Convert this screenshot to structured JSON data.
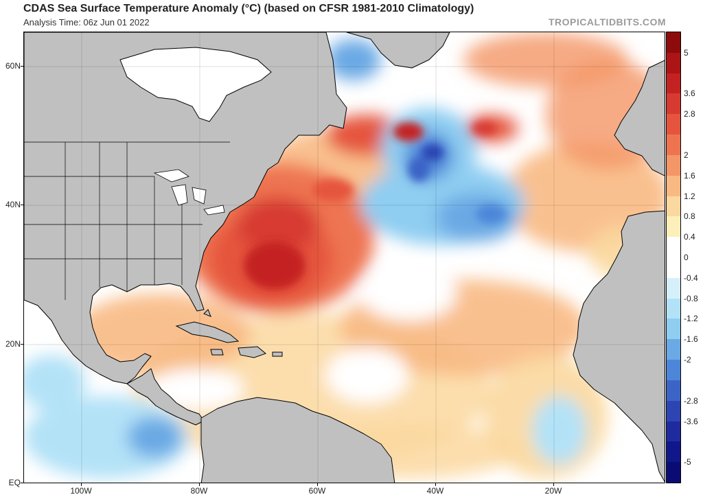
{
  "header": {
    "title": "CDAS Sea Surface Temperature Anomaly (°C) (based on CFSR 1981-2010 Climatology)",
    "subtitle": "Analysis Time: 06z Jun 01 2022",
    "brand": "TROPICALTIDBITS.COM"
  },
  "map": {
    "lat_labels": [
      "60N",
      "40N",
      "20N",
      "EQ"
    ],
    "lon_labels": [
      "100W",
      "80W",
      "60W",
      "40W",
      "20W"
    ],
    "land_color": "#c0c0c0",
    "coast_color": "#000000"
  },
  "colorbar": {
    "labels": [
      "5",
      "3.6",
      "2.8",
      "2",
      "1.6",
      "1.2",
      "0.8",
      "0.4",
      "0",
      "-0.4",
      "-0.8",
      "-1.2",
      "-1.6",
      "-2",
      "-2.8",
      "-3.6",
      "-5"
    ],
    "colors": [
      "#8e0b0b",
      "#ab1515",
      "#c42222",
      "#d73a30",
      "#e5553e",
      "#ee7451",
      "#f49667",
      "#f8b983",
      "#fbd89f",
      "#fcefb9",
      "#ffffff",
      "#ffffff",
      "#d6f0fb",
      "#b3e2f7",
      "#8fcdf1",
      "#6aa9e4",
      "#4d86d8",
      "#3b64c6",
      "#2c45b3",
      "#1e2a9e",
      "#0f178a",
      "#0a0c74"
    ]
  }
}
